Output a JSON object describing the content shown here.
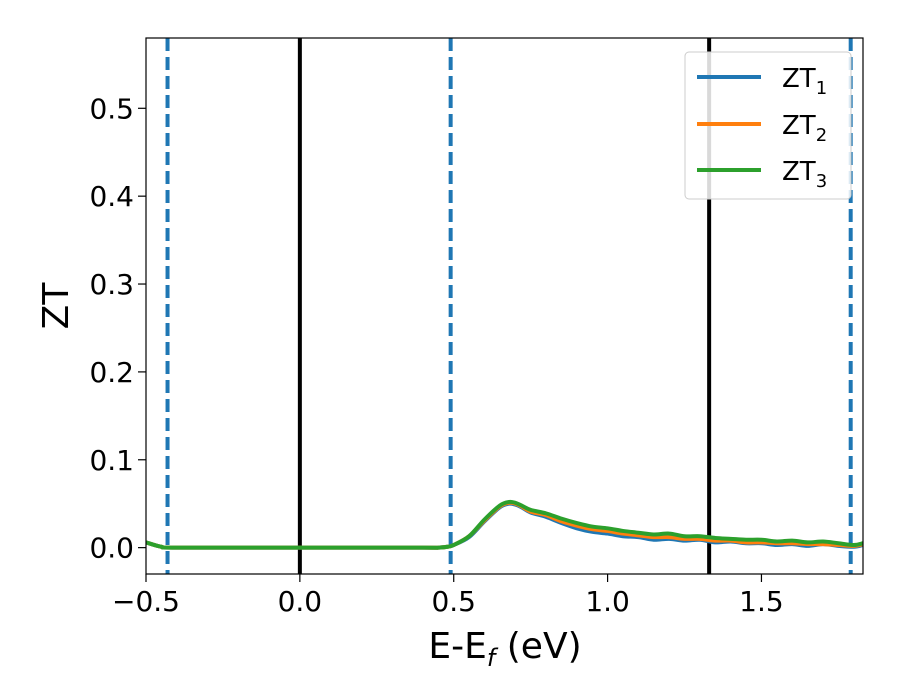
{
  "chart_data": {
    "type": "line",
    "xlabel": {
      "main": "E-E",
      "sub": "f",
      "tail": " (eV)"
    },
    "ylabel": "ZT",
    "xlim": [
      -0.5,
      1.83
    ],
    "ylim": [
      -0.03,
      0.58
    ],
    "x_ticks": [
      -0.5,
      0.0,
      0.5,
      1.0,
      1.5
    ],
    "x_tick_labels": [
      "−0.5",
      "0.0",
      "0.5",
      "1.0",
      "1.5"
    ],
    "y_ticks": [
      0.0,
      0.1,
      0.2,
      0.3,
      0.4,
      0.5
    ],
    "y_tick_labels": [
      "0.0",
      "0.1",
      "0.2",
      "0.3",
      "0.4",
      "0.5"
    ],
    "vlines": [
      {
        "x": -0.43,
        "style": "dashed",
        "color": "#1f77b4"
      },
      {
        "x": 0.0,
        "style": "solid",
        "color": "#000000"
      },
      {
        "x": 0.49,
        "style": "dashed",
        "color": "#1f77b4"
      },
      {
        "x": 1.33,
        "style": "solid",
        "color": "#000000"
      },
      {
        "x": 1.79,
        "style": "dashed",
        "color": "#1f77b4"
      }
    ],
    "legend_position": "top-right",
    "series": [
      {
        "name": "ZT",
        "sub": "1",
        "color": "#1f77b4",
        "x": [
          -0.5,
          -0.45,
          -0.4,
          0.0,
          0.4,
          0.45,
          0.48,
          0.5,
          0.55,
          0.6,
          0.65,
          0.68,
          0.7,
          0.72,
          0.75,
          0.8,
          0.85,
          0.9,
          0.95,
          1.0,
          1.05,
          1.1,
          1.15,
          1.2,
          1.25,
          1.3,
          1.35,
          1.4,
          1.45,
          1.5,
          1.55,
          1.6,
          1.65,
          1.7,
          1.75,
          1.8,
          1.83
        ],
        "y": [
          0.006,
          0.001,
          0.0,
          0.0,
          0.0,
          0.0,
          0.001,
          0.003,
          0.012,
          0.03,
          0.046,
          0.05,
          0.049,
          0.046,
          0.04,
          0.035,
          0.028,
          0.022,
          0.018,
          0.016,
          0.013,
          0.012,
          0.009,
          0.01,
          0.008,
          0.009,
          0.006,
          0.007,
          0.005,
          0.005,
          0.003,
          0.004,
          0.002,
          0.004,
          0.002,
          0.001,
          0.003
        ]
      },
      {
        "name": "ZT",
        "sub": "2",
        "color": "#ff7f0e",
        "x": [
          -0.5,
          -0.45,
          -0.4,
          0.0,
          0.4,
          0.45,
          0.48,
          0.5,
          0.55,
          0.6,
          0.65,
          0.68,
          0.7,
          0.72,
          0.75,
          0.8,
          0.85,
          0.9,
          0.95,
          1.0,
          1.05,
          1.1,
          1.15,
          1.2,
          1.25,
          1.3,
          1.35,
          1.4,
          1.45,
          1.5,
          1.55,
          1.6,
          1.65,
          1.7,
          1.75,
          1.8,
          1.83
        ],
        "y": [
          0.006,
          0.001,
          0.0,
          0.0,
          0.0,
          0.0,
          0.001,
          0.003,
          0.013,
          0.031,
          0.047,
          0.051,
          0.05,
          0.047,
          0.041,
          0.037,
          0.03,
          0.025,
          0.021,
          0.019,
          0.016,
          0.014,
          0.012,
          0.012,
          0.01,
          0.01,
          0.008,
          0.008,
          0.006,
          0.006,
          0.005,
          0.005,
          0.004,
          0.004,
          0.003,
          0.002,
          0.004
        ]
      },
      {
        "name": "ZT",
        "sub": "3",
        "color": "#2ca02c",
        "x": [
          -0.5,
          -0.45,
          -0.4,
          0.0,
          0.4,
          0.45,
          0.48,
          0.5,
          0.55,
          0.6,
          0.65,
          0.68,
          0.7,
          0.72,
          0.75,
          0.8,
          0.85,
          0.9,
          0.95,
          1.0,
          1.05,
          1.1,
          1.15,
          1.2,
          1.25,
          1.3,
          1.35,
          1.4,
          1.45,
          1.5,
          1.55,
          1.6,
          1.65,
          1.7,
          1.75,
          1.8,
          1.83
        ],
        "y": [
          0.006,
          0.001,
          0.0,
          0.0,
          0.0,
          0.0,
          0.001,
          0.003,
          0.013,
          0.032,
          0.048,
          0.052,
          0.051,
          0.048,
          0.043,
          0.039,
          0.033,
          0.028,
          0.024,
          0.022,
          0.019,
          0.017,
          0.015,
          0.016,
          0.013,
          0.013,
          0.011,
          0.01,
          0.009,
          0.009,
          0.007,
          0.008,
          0.006,
          0.007,
          0.005,
          0.003,
          0.005
        ]
      }
    ]
  }
}
